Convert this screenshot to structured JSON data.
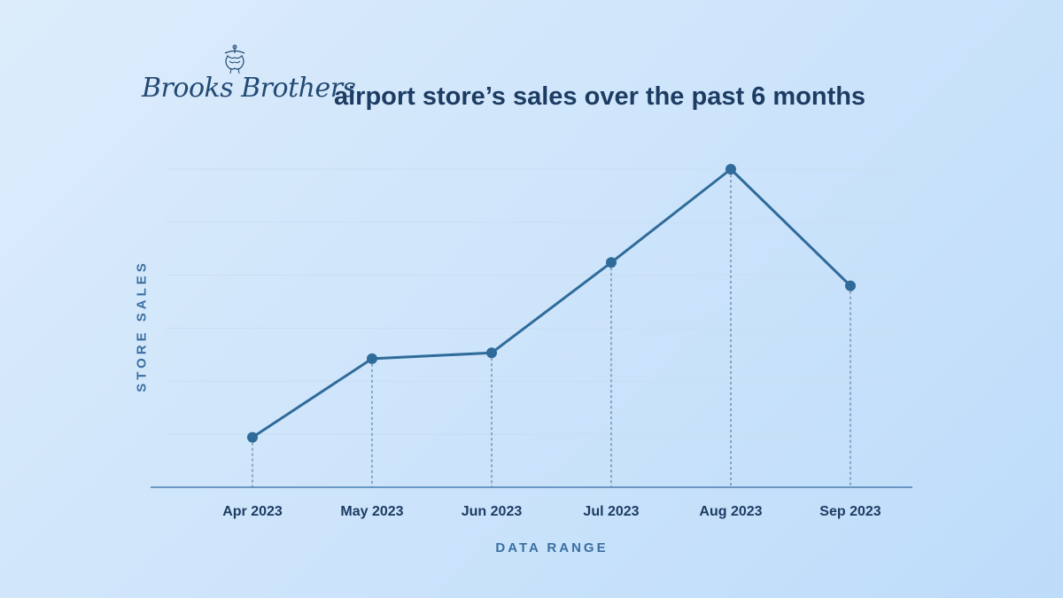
{
  "header": {
    "brand_name": "Brooks Brothers",
    "brand_logo_icon": "golden-fleece-icon",
    "title": "airport store’s sales over the past 6 months"
  },
  "colors": {
    "line": "#2f6b9a",
    "grid": "#c9def2",
    "axis": "#4b7fb0",
    "drop_line": "#5a7d9c",
    "title": "#1d3c63",
    "axis_title": "#3a6fa0"
  },
  "chart_data": {
    "type": "line",
    "categories": [
      "Apr 2023",
      "May 2023",
      "Jun 2023",
      "Jul 2023",
      "Aug 2023",
      "Sep 2023"
    ],
    "values": [
      8,
      35,
      37,
      68,
      100,
      60
    ],
    "ylim": [
      0,
      100
    ],
    "xlabel": "DATA RANGE",
    "ylabel": "STORE SALES",
    "grid": true,
    "markers": true,
    "drop_lines": true,
    "y_tick_labels_visible": false
  }
}
